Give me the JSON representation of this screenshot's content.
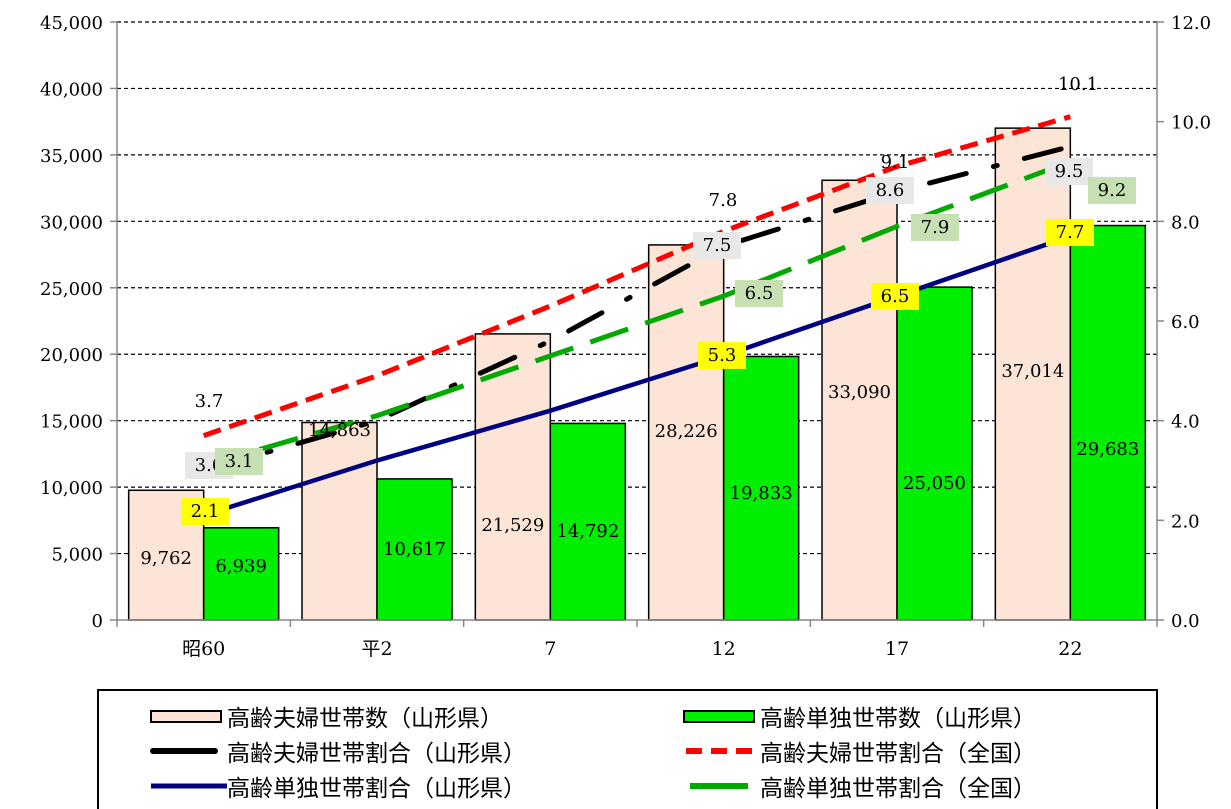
{
  "colors": {
    "pair_bar": "#fce4d6",
    "single_bar": "#00ee00",
    "pair_yamagata_line": "#000000",
    "pair_national_line": "#ff0000",
    "single_yamagata_line": "#000080",
    "single_national_line": "#00aa00",
    "highlight_yellow": "#ffff00",
    "highlight_green": "#c6e0b4",
    "highlight_gray": "#e8e8e8"
  },
  "chart_data": {
    "type": "bar",
    "categories": [
      "昭60",
      "平2",
      "7",
      "12",
      "17",
      "22"
    ],
    "y_left": {
      "ylim": [
        0,
        45000
      ],
      "ticks": [
        "0",
        "5,000",
        "10,000",
        "15,000",
        "20,000",
        "25,000",
        "30,000",
        "35,000",
        "40,000",
        "45,000"
      ]
    },
    "y_right": {
      "ylim": [
        0,
        12
      ],
      "ticks": [
        "0.0",
        "2.0",
        "4.0",
        "6.0",
        "8.0",
        "10.0",
        "12.0"
      ]
    },
    "grid": "horizontal-dashed",
    "bar_series": [
      {
        "name": "高齢夫婦世帯数（山形県）",
        "values": [
          9762,
          14863,
          21529,
          28226,
          33090,
          37014
        ],
        "labels": [
          "9,762",
          "14,863",
          "21,529",
          "28,226",
          "33,090",
          "37,014"
        ]
      },
      {
        "name": "高齢単独世帯数（山形県）",
        "values": [
          6939,
          10617,
          14792,
          19833,
          25050,
          29683
        ],
        "labels": [
          "6,939",
          "10,617",
          "14,792",
          "19,833",
          "25,050",
          "29,683"
        ]
      }
    ],
    "line_series": [
      {
        "name": "高齢夫婦世帯割合（山形県）",
        "values": [
          3.0,
          4.0,
          5.6,
          7.5,
          8.6,
          9.5
        ],
        "labels": [
          "3.0",
          "",
          "",
          "7.5",
          "8.6",
          "9.5"
        ],
        "style": "black-dashdot"
      },
      {
        "name": "高齢夫婦世帯割合（全国）",
        "values": [
          3.7,
          4.9,
          6.3,
          7.8,
          9.1,
          10.1
        ],
        "labels": [
          "3.7",
          "",
          "",
          "7.8",
          "9.1",
          "10.1"
        ],
        "style": "red-dashed"
      },
      {
        "name": "高齢単独世帯割合（山形県）",
        "values": [
          2.1,
          3.2,
          4.2,
          5.3,
          6.5,
          7.7
        ],
        "labels": [
          "2.1",
          "",
          "",
          "5.3",
          "6.5",
          "7.7"
        ],
        "style": "navy-solid"
      },
      {
        "name": "高齢単独世帯割合（全国）",
        "values": [
          3.1,
          4.1,
          5.3,
          6.5,
          7.9,
          9.2
        ],
        "labels": [
          "3.1",
          "",
          "",
          "6.5",
          "7.9",
          "9.2"
        ],
        "style": "green-dashed"
      }
    ]
  },
  "legend": {
    "items": [
      "高齢夫婦世帯数（山形県）",
      "高齢単独世帯数（山形県）",
      "高齢夫婦世帯割合（山形県）",
      "高齢夫婦世帯割合（全国）",
      "高齢単独世帯割合（山形県）",
      "高齢単独世帯割合（全国）"
    ]
  }
}
